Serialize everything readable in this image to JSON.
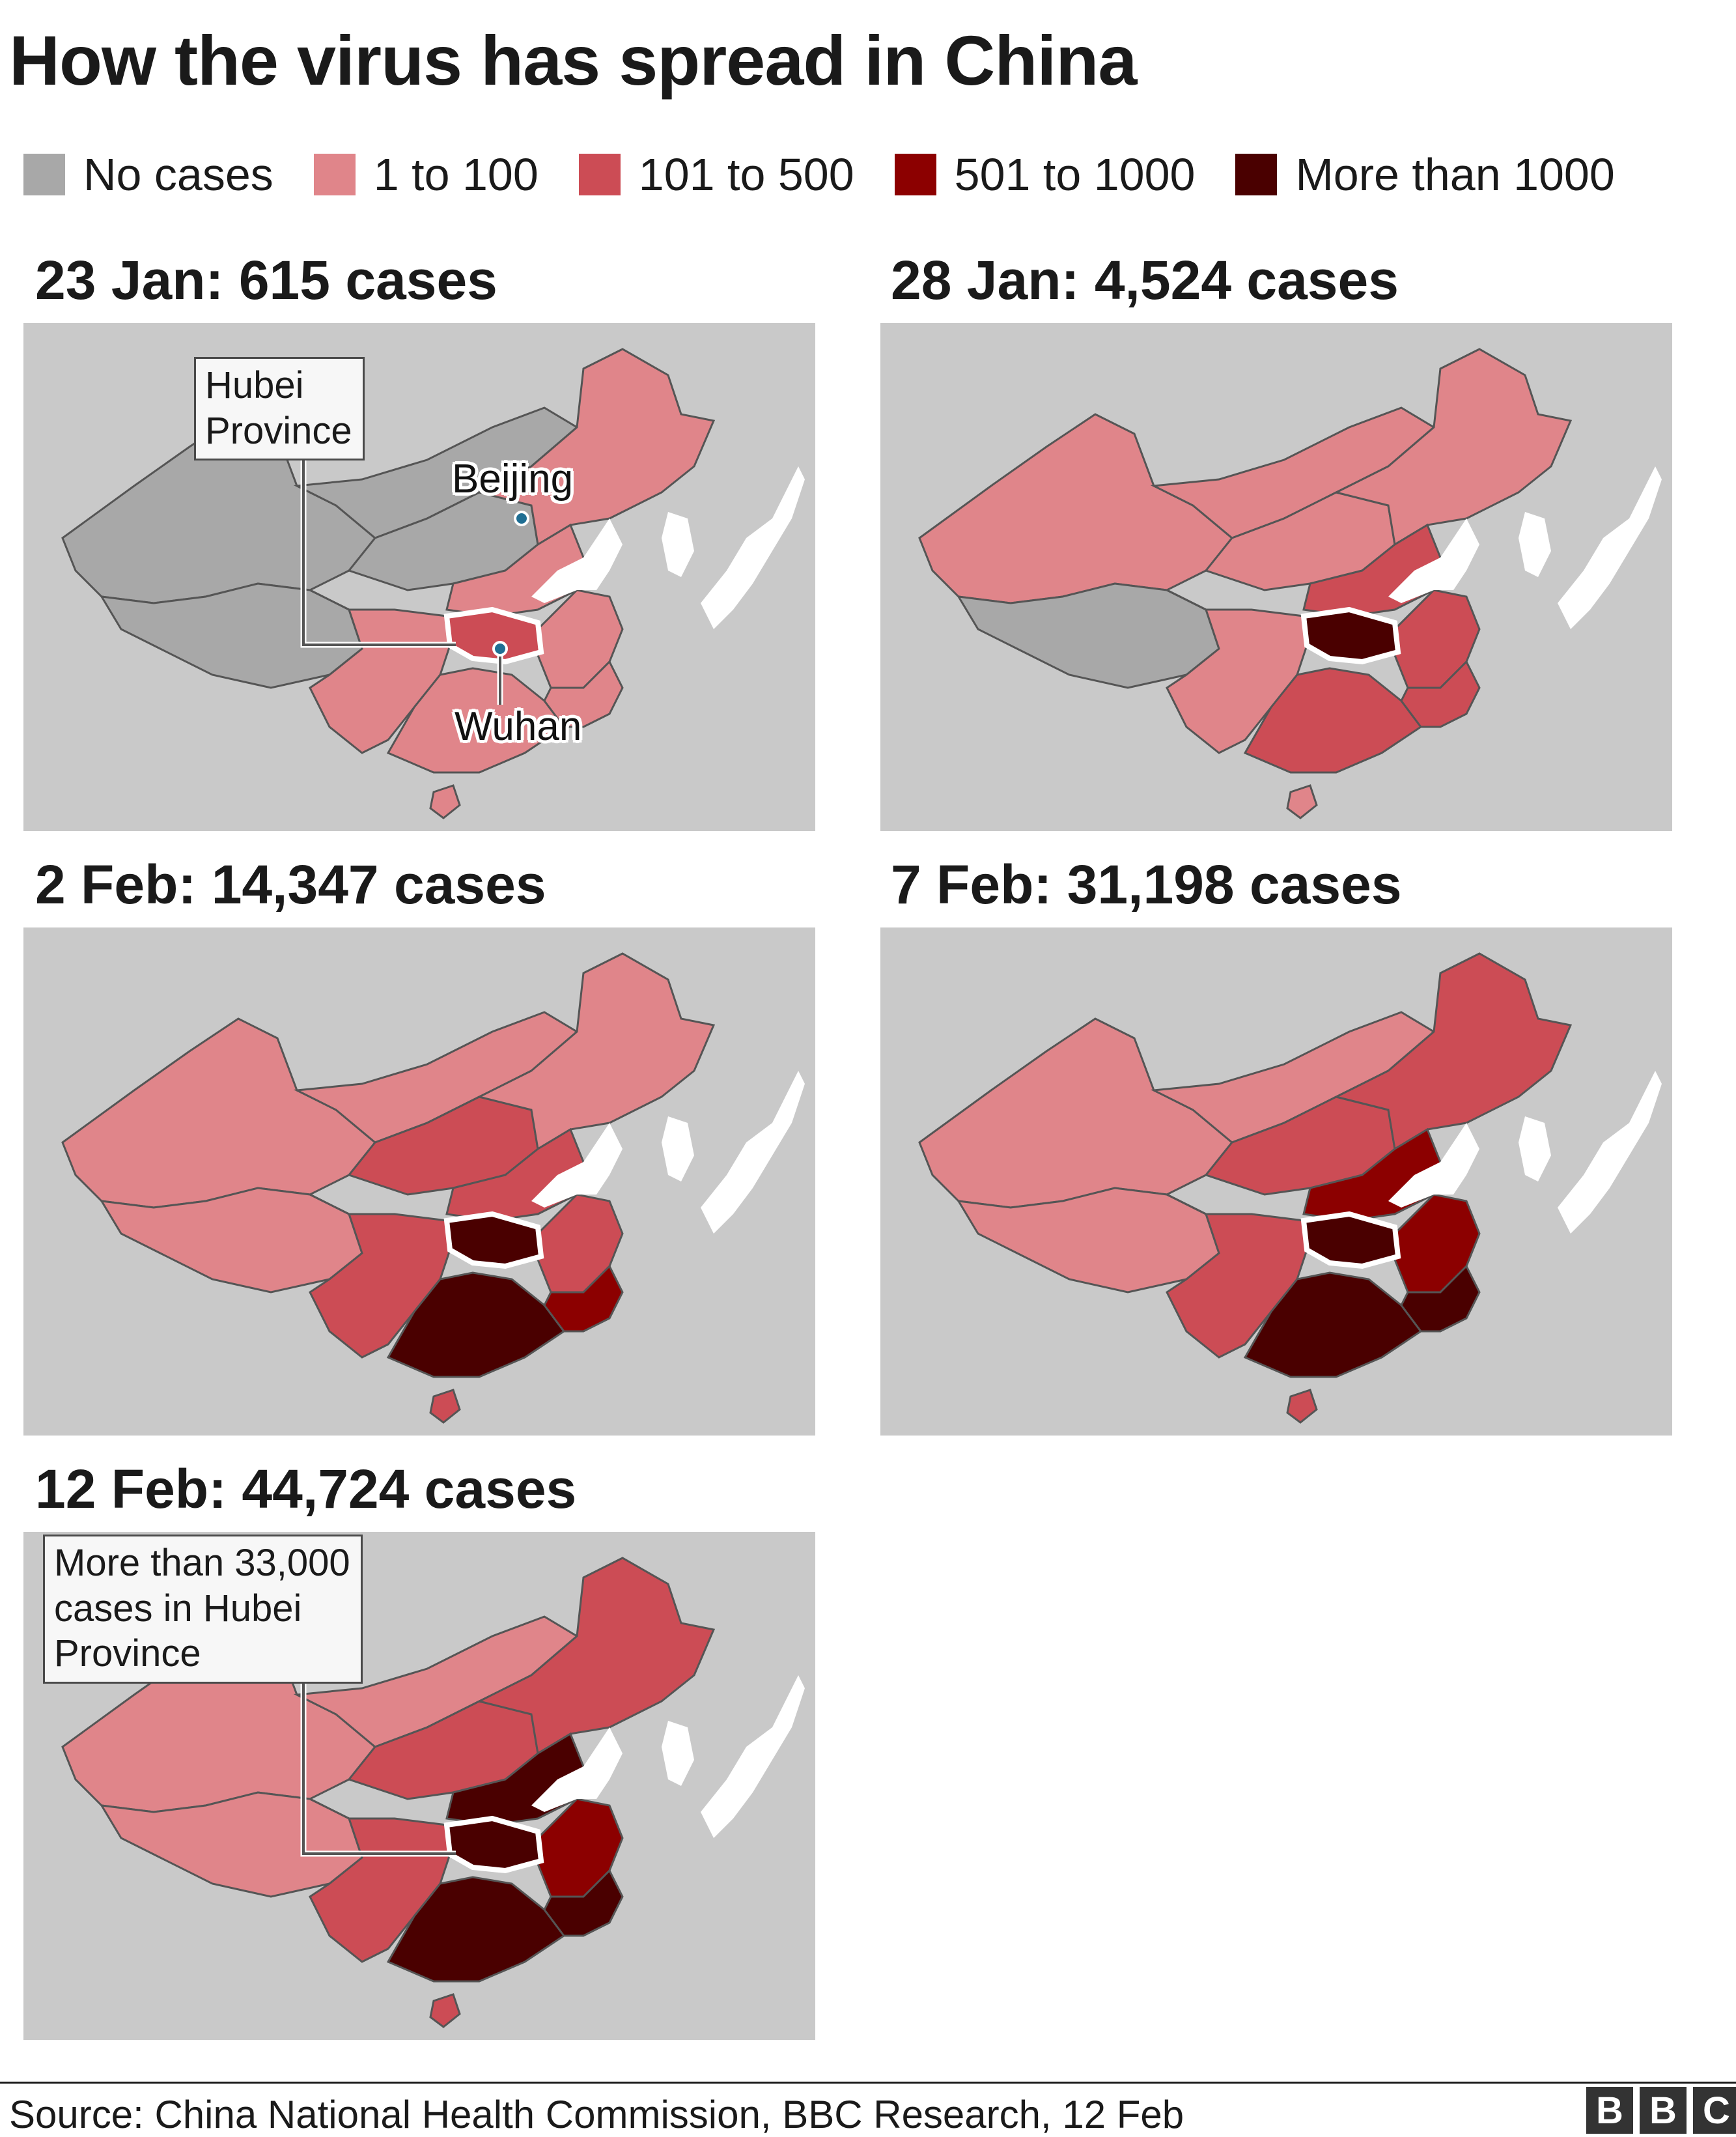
{
  "title": "How the virus has spread in China",
  "legend": [
    {
      "label": "No cases",
      "color": "#a8a8a8"
    },
    {
      "label": "1 to 100",
      "color": "#e0858a"
    },
    {
      "label": "101 to 500",
      "color": "#cc4c55"
    },
    {
      "label": "501 to 1000",
      "color": "#8c0000"
    },
    {
      "label": "More than 1000",
      "color": "#4a0000"
    }
  ],
  "colors": {
    "background_land": "#c9c9c9",
    "border": "#555555",
    "hubei_outline": "#ffffff"
  },
  "panels": [
    {
      "title": "23 Jan: 615 cases",
      "date": "23 Jan",
      "cases": 615,
      "callout": [
        "Hubei",
        "Province"
      ],
      "labels": {
        "beijing": "Beijing",
        "wuhan": "Wuhan"
      },
      "fills": {
        "west": "none",
        "tibet": "none",
        "inner": "none",
        "north": "none",
        "northeast": "low",
        "central": "low",
        "south": "low",
        "southwest": "low",
        "east": "low",
        "hubei": "mid",
        "coast": "low",
        "hainan": "low"
      }
    },
    {
      "title": "28 Jan: 4,524 cases",
      "date": "28 Jan",
      "cases": 4524,
      "fills": {
        "west": "low",
        "tibet": "none",
        "inner": "low",
        "north": "low",
        "northeast": "low",
        "central": "mid",
        "south": "mid",
        "southwest": "low",
        "east": "mid",
        "hubei": "max",
        "coast": "mid",
        "hainan": "low"
      }
    },
    {
      "title": "2 Feb: 14,347 cases",
      "date": "2 Feb",
      "cases": 14347,
      "fills": {
        "west": "low",
        "tibet": "low",
        "inner": "low",
        "north": "mid",
        "northeast": "low",
        "central": "mid",
        "south": "max",
        "southwest": "mid",
        "east": "mid",
        "hubei": "max",
        "coast": "high",
        "hainan": "mid"
      }
    },
    {
      "title": "7 Feb: 31,198 cases",
      "date": "7 Feb",
      "cases": 31198,
      "fills": {
        "west": "low",
        "tibet": "low",
        "inner": "low",
        "north": "mid",
        "northeast": "mid",
        "central": "high",
        "south": "max",
        "southwest": "mid",
        "east": "high",
        "hubei": "max",
        "coast": "max",
        "hainan": "mid"
      }
    },
    {
      "title": "12 Feb: 44,724 cases",
      "date": "12 Feb",
      "cases": 44724,
      "callout": [
        "More than 33,000",
        "cases in Hubei",
        "Province"
      ],
      "fills": {
        "west": "low",
        "tibet": "low",
        "inner": "low",
        "north": "mid",
        "northeast": "mid",
        "central": "max",
        "south": "max",
        "southwest": "mid",
        "east": "high",
        "hubei": "max",
        "coast": "max",
        "hainan": "mid"
      }
    }
  ],
  "source": "Source: China National Health Commission, BBC Research, 12 Feb",
  "logo": [
    "B",
    "B",
    "C"
  ]
}
